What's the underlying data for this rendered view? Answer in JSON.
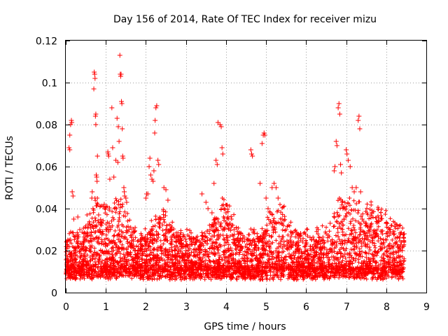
{
  "chart_data": {
    "type": "scatter",
    "title": "Day 156 of 2014, Rate Of TEC Index for receiver mizu",
    "xlabel": "GPS time / hours",
    "ylabel": "ROTI / TECUs",
    "xlim": [
      0,
      9
    ],
    "ylim": [
      0,
      0.12
    ],
    "xticks": [
      0,
      1,
      2,
      3,
      4,
      5,
      6,
      7,
      8,
      9
    ],
    "yticks": [
      0,
      0.02,
      0.04,
      0.06,
      0.08,
      0.1,
      0.12
    ],
    "xtick_labels": [
      "0",
      "1",
      "2",
      "3",
      "4",
      "5",
      "6",
      "7",
      "8",
      "9"
    ],
    "ytick_labels": [
      "0",
      "0.02",
      "0.04",
      "0.06",
      "0.08",
      "0.1",
      "0.12"
    ],
    "grid": true,
    "marker": "+",
    "color": "#ff0000",
    "series": [
      {
        "name": "ROTI",
        "note": "dense cloud of points roughly 0.005-0.03 TECU spanning 0-8.45 h, plus listed spikes",
        "points": [
          [
            0.05,
            0.025
          ],
          [
            0.08,
            0.069
          ],
          [
            0.1,
            0.068
          ],
          [
            0.1,
            0.075
          ],
          [
            0.12,
            0.08
          ],
          [
            0.14,
            0.082
          ],
          [
            0.15,
            0.081
          ],
          [
            0.16,
            0.048
          ],
          [
            0.18,
            0.046
          ],
          [
            0.2,
            0.035
          ],
          [
            0.25,
            0.027
          ],
          [
            0.3,
            0.036
          ],
          [
            0.35,
            0.03
          ],
          [
            0.45,
            0.022
          ],
          [
            0.55,
            0.028
          ],
          [
            0.62,
            0.031
          ],
          [
            0.65,
            0.045
          ],
          [
            0.66,
            0.048
          ],
          [
            0.68,
            0.04
          ],
          [
            0.7,
            0.097
          ],
          [
            0.71,
            0.105
          ],
          [
            0.72,
            0.104
          ],
          [
            0.73,
            0.102
          ],
          [
            0.74,
            0.084
          ],
          [
            0.75,
            0.085
          ],
          [
            0.75,
            0.08
          ],
          [
            0.76,
            0.056
          ],
          [
            0.77,
            0.055
          ],
          [
            0.78,
            0.053
          ],
          [
            0.79,
            0.065
          ],
          [
            0.8,
            0.042
          ],
          [
            0.82,
            0.037
          ],
          [
            0.85,
            0.03
          ],
          [
            0.9,
            0.033
          ],
          [
            0.93,
            0.041
          ],
          [
            0.96,
            0.042
          ],
          [
            1.0,
            0.03
          ],
          [
            1.05,
            0.067
          ],
          [
            1.06,
            0.066
          ],
          [
            1.07,
            0.065
          ],
          [
            1.1,
            0.054
          ],
          [
            1.12,
            0.031
          ],
          [
            1.15,
            0.088
          ],
          [
            1.17,
            0.069
          ],
          [
            1.2,
            0.055
          ],
          [
            1.25,
            0.063
          ],
          [
            1.28,
            0.083
          ],
          [
            1.3,
            0.062
          ],
          [
            1.31,
            0.079
          ],
          [
            1.33,
            0.072
          ],
          [
            1.35,
            0.113
          ],
          [
            1.36,
            0.104
          ],
          [
            1.37,
            0.103
          ],
          [
            1.38,
            0.104
          ],
          [
            1.39,
            0.091
          ],
          [
            1.4,
            0.09
          ],
          [
            1.41,
            0.078
          ],
          [
            1.42,
            0.065
          ],
          [
            1.43,
            0.064
          ],
          [
            1.45,
            0.05
          ],
          [
            1.46,
            0.048
          ],
          [
            1.47,
            0.046
          ],
          [
            1.5,
            0.045
          ],
          [
            1.52,
            0.043
          ],
          [
            1.55,
            0.029
          ],
          [
            1.58,
            0.03
          ],
          [
            1.65,
            0.027
          ],
          [
            1.7,
            0.022
          ],
          [
            1.8,
            0.02
          ],
          [
            1.9,
            0.018
          ],
          [
            2.0,
            0.045
          ],
          [
            2.02,
            0.047
          ],
          [
            2.05,
            0.047
          ],
          [
            2.08,
            0.06
          ],
          [
            2.1,
            0.064
          ],
          [
            2.12,
            0.056
          ],
          [
            2.15,
            0.054
          ],
          [
            2.18,
            0.053
          ],
          [
            2.2,
            0.058
          ],
          [
            2.22,
            0.076
          ],
          [
            2.23,
            0.082
          ],
          [
            2.25,
            0.088
          ],
          [
            2.27,
            0.089
          ],
          [
            2.3,
            0.063
          ],
          [
            2.32,
            0.061
          ],
          [
            2.35,
            0.033
          ],
          [
            2.45,
            0.05
          ],
          [
            2.5,
            0.049
          ],
          [
            2.55,
            0.044
          ],
          [
            2.6,
            0.03
          ],
          [
            2.7,
            0.027
          ],
          [
            2.8,
            0.025
          ],
          [
            2.9,
            0.022
          ],
          [
            3.0,
            0.02
          ],
          [
            3.1,
            0.023
          ],
          [
            3.4,
            0.047
          ],
          [
            3.5,
            0.043
          ],
          [
            3.55,
            0.04
          ],
          [
            3.6,
            0.03
          ],
          [
            3.65,
            0.038
          ],
          [
            3.7,
            0.052
          ],
          [
            3.75,
            0.063
          ],
          [
            3.78,
            0.061
          ],
          [
            3.8,
            0.081
          ],
          [
            3.85,
            0.08
          ],
          [
            3.88,
            0.079
          ],
          [
            3.9,
            0.069
          ],
          [
            3.92,
            0.066
          ],
          [
            3.95,
            0.04
          ],
          [
            4.0,
            0.038
          ],
          [
            4.05,
            0.036
          ],
          [
            4.1,
            0.033
          ],
          [
            4.2,
            0.03
          ],
          [
            4.3,
            0.026
          ],
          [
            4.62,
            0.068
          ],
          [
            4.64,
            0.066
          ],
          [
            4.66,
            0.065
          ],
          [
            4.7,
            0.03
          ],
          [
            4.85,
            0.052
          ],
          [
            4.9,
            0.071
          ],
          [
            4.93,
            0.075
          ],
          [
            4.95,
            0.076
          ],
          [
            4.97,
            0.075
          ],
          [
            5.0,
            0.045
          ],
          [
            5.05,
            0.04
          ],
          [
            5.1,
            0.038
          ],
          [
            5.15,
            0.05
          ],
          [
            5.2,
            0.052
          ],
          [
            5.25,
            0.05
          ],
          [
            5.3,
            0.045
          ],
          [
            5.4,
            0.035
          ],
          [
            5.5,
            0.03
          ],
          [
            5.6,
            0.025
          ],
          [
            6.1,
            0.022
          ],
          [
            6.3,
            0.03
          ],
          [
            6.5,
            0.028
          ],
          [
            6.6,
            0.033
          ],
          [
            6.7,
            0.058
          ],
          [
            6.72,
            0.06
          ],
          [
            6.75,
            0.072
          ],
          [
            6.77,
            0.07
          ],
          [
            6.8,
            0.088
          ],
          [
            6.82,
            0.09
          ],
          [
            6.84,
            0.085
          ],
          [
            6.86,
            0.061
          ],
          [
            6.88,
            0.057
          ],
          [
            6.9,
            0.043
          ],
          [
            6.92,
            0.04
          ],
          [
            6.95,
            0.035
          ],
          [
            7.0,
            0.068
          ],
          [
            7.02,
            0.066
          ],
          [
            7.05,
            0.063
          ],
          [
            7.1,
            0.06
          ],
          [
            7.15,
            0.05
          ],
          [
            7.2,
            0.048
          ],
          [
            7.25,
            0.05
          ],
          [
            7.3,
            0.082
          ],
          [
            7.32,
            0.084
          ],
          [
            7.34,
            0.078
          ],
          [
            7.36,
            0.048
          ],
          [
            7.4,
            0.035
          ],
          [
            7.5,
            0.033
          ],
          [
            7.6,
            0.03
          ],
          [
            7.8,
            0.034
          ],
          [
            8.0,
            0.033
          ],
          [
            8.1,
            0.03
          ],
          [
            8.2,
            0.028
          ],
          [
            8.3,
            0.022
          ],
          [
            8.4,
            0.02
          ],
          [
            8.45,
            0.028
          ]
        ]
      }
    ]
  }
}
